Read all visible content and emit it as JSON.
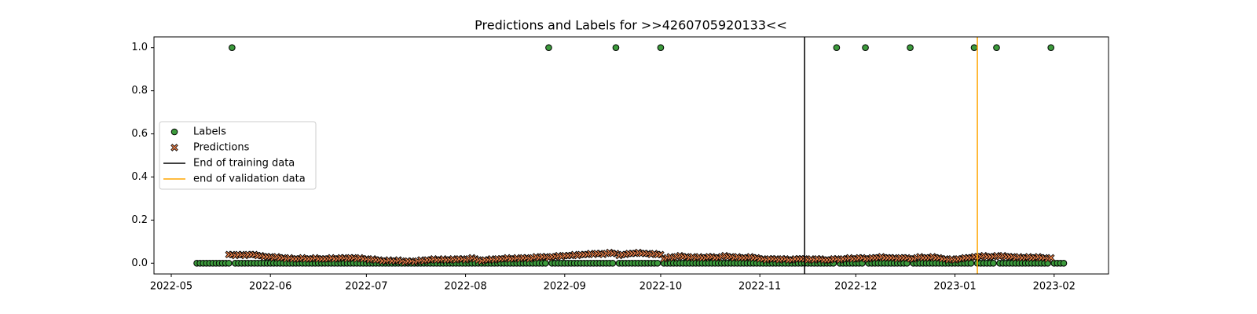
{
  "chart_data": {
    "type": "scatter",
    "title": "Predictions and Labels for >>4260705920133<<",
    "x": [
      19121,
      19122,
      19123,
      19124,
      19125,
      19126,
      19127,
      19128,
      19129,
      19130,
      19131,
      19132,
      19133,
      19134,
      19135,
      19136,
      19137,
      19138,
      19139,
      19140,
      19141,
      19142,
      19143,
      19144,
      19145,
      19146,
      19147,
      19148,
      19149,
      19150,
      19151,
      19152,
      19153,
      19154,
      19155,
      19156,
      19157,
      19158,
      19159,
      19160,
      19161,
      19162,
      19163,
      19164,
      19165,
      19166,
      19167,
      19168,
      19169,
      19170,
      19171,
      19172,
      19173,
      19174,
      19175,
      19176,
      19177,
      19178,
      19179,
      19180,
      19181,
      19182,
      19183,
      19184,
      19185,
      19186,
      19187,
      19188,
      19189,
      19190,
      19191,
      19192,
      19193,
      19194,
      19195,
      19196,
      19197,
      19198,
      19199,
      19200,
      19201,
      19202,
      19203,
      19204,
      19205,
      19206,
      19207,
      19208,
      19209,
      19210,
      19211,
      19212,
      19213,
      19214,
      19215,
      19216,
      19217,
      19218,
      19219,
      19220,
      19221,
      19222,
      19223,
      19224,
      19225,
      19226,
      19227,
      19228,
      19229,
      19230,
      19231,
      19232,
      19233,
      19234,
      19235,
      19236,
      19237,
      19238,
      19239,
      19240,
      19241,
      19242,
      19243,
      19244,
      19245,
      19246,
      19247,
      19248,
      19249,
      19250,
      19251,
      19252,
      19253,
      19254,
      19255,
      19256,
      19257,
      19258,
      19259,
      19260,
      19261,
      19262,
      19263,
      19264,
      19265,
      19266,
      19267,
      19268,
      19269,
      19270,
      19271,
      19272,
      19273,
      19274,
      19275,
      19276,
      19277,
      19278,
      19279,
      19280,
      19281,
      19282,
      19283,
      19284,
      19285,
      19286,
      19287,
      19288,
      19289,
      19290,
      19291,
      19292,
      19293,
      19294,
      19295,
      19296,
      19297,
      19298,
      19299,
      19300,
      19301,
      19302,
      19303,
      19304,
      19305,
      19306,
      19307,
      19308,
      19309,
      19310,
      19311,
      19312,
      19313,
      19314,
      19315,
      19316,
      19317,
      19318,
      19319,
      19320,
      19321,
      19322,
      19323,
      19324,
      19325,
      19326,
      19327,
      19328,
      19329,
      19330,
      19331,
      19332,
      19333,
      19334,
      19335,
      19336,
      19337,
      19338,
      19339,
      19340,
      19341,
      19342,
      19343,
      19344,
      19345,
      19346,
      19347,
      19348,
      19349,
      19350,
      19351,
      19352,
      19353,
      19354,
      19355,
      19356,
      19357,
      19358,
      19359,
      19360,
      19361,
      19362,
      19363,
      19364,
      19365,
      19366,
      19367,
      19368,
      19369,
      19370,
      19371,
      19372,
      19373,
      19374,
      19375,
      19376,
      19377,
      19378,
      19379,
      19380,
      19381,
      19382,
      19383,
      19384,
      19385,
      19386,
      19387,
      19388,
      19389,
      19390,
      19391,
      19392
    ],
    "series": [
      {
        "name": "Labels",
        "color": "#3c9a3c",
        "marker": "circle",
        "values": [
          0,
          0,
          0,
          0,
          0,
          0,
          0,
          0,
          0,
          0,
          0,
          1,
          0,
          0,
          0,
          0,
          0,
          0,
          0,
          0,
          0,
          0,
          0,
          0,
          0,
          0,
          0,
          0,
          0,
          0,
          0,
          0,
          0,
          0,
          0,
          0,
          0,
          0,
          0,
          0,
          0,
          0,
          0,
          0,
          0,
          0,
          0,
          0,
          0,
          0,
          0,
          0,
          0,
          0,
          0,
          0,
          0,
          0,
          0,
          0,
          0,
          0,
          0,
          0,
          0,
          0,
          0,
          0,
          0,
          0,
          0,
          0,
          0,
          0,
          0,
          0,
          0,
          0,
          0,
          0,
          0,
          0,
          0,
          0,
          0,
          0,
          0,
          0,
          0,
          0,
          0,
          0,
          0,
          0,
          0,
          0,
          0,
          0,
          0,
          0,
          0,
          0,
          0,
          0,
          0,
          0,
          0,
          0,
          0,
          0,
          1,
          0,
          0,
          0,
          0,
          0,
          0,
          0,
          0,
          0,
          0,
          0,
          0,
          0,
          0,
          0,
          0,
          0,
          0,
          0,
          0,
          1,
          0,
          0,
          0,
          0,
          0,
          0,
          0,
          0,
          0,
          0,
          0,
          0,
          0,
          1,
          0,
          0,
          0,
          0,
          0,
          0,
          0,
          0,
          0,
          0,
          0,
          0,
          0,
          0,
          0,
          0,
          0,
          0,
          0,
          0,
          0,
          0,
          0,
          0,
          0,
          0,
          0,
          0,
          0,
          0,
          0,
          0,
          0,
          0,
          0,
          0,
          0,
          0,
          0,
          0,
          0,
          0,
          0,
          0,
          0,
          0,
          0,
          0,
          0,
          0,
          0,
          0,
          0,
          0,
          1,
          0,
          0,
          0,
          0,
          0,
          0,
          0,
          0,
          1,
          0,
          0,
          0,
          0,
          0,
          0,
          0,
          0,
          0,
          0,
          0,
          0,
          0,
          1,
          0,
          0,
          0,
          0,
          0,
          0,
          0,
          0,
          0,
          0,
          0,
          0,
          0,
          0,
          0,
          0,
          0,
          0,
          0,
          1,
          0,
          0,
          0,
          0,
          0,
          0,
          1,
          0,
          0,
          0,
          0,
          0,
          0,
          0,
          0,
          0,
          0,
          0,
          0,
          0,
          0,
          0,
          0,
          1,
          0,
          0,
          0,
          0
        ]
      },
      {
        "name": "Predictions",
        "color": "#e8804a",
        "marker": "x",
        "values": [
          null,
          null,
          null,
          null,
          null,
          null,
          null,
          null,
          null,
          null,
          0.04,
          0.04,
          0.035,
          0.04,
          0.04,
          0.035,
          0.04,
          0.04,
          0.04,
          0.035,
          0.035,
          0.03,
          0.03,
          0.03,
          0.025,
          0.03,
          0.025,
          0.025,
          0.02,
          0.025,
          0.02,
          0.02,
          0.02,
          0.025,
          0.02,
          0.02,
          0.02,
          0.025,
          0.02,
          0.02,
          0.02,
          0.02,
          0.025,
          0.02,
          0.02,
          0.025,
          0.025,
          0.02,
          0.025,
          0.025,
          0.02,
          0.025,
          0.02,
          0.02,
          0.015,
          0.02,
          0.015,
          0.015,
          0.01,
          0.01,
          0.015,
          0.01,
          0.01,
          0.015,
          0.01,
          0.005,
          0.01,
          0.01,
          0.005,
          0.01,
          0.015,
          0.01,
          0.015,
          0.015,
          0.02,
          0.015,
          0.015,
          0.02,
          0.015,
          0.015,
          0.02,
          0.015,
          0.02,
          0.02,
          0.015,
          0.02,
          0.025,
          0.02,
          0.015,
          0.01,
          0.015,
          0.015,
          0.02,
          0.015,
          0.02,
          0.02,
          0.02,
          0.025,
          0.02,
          0.02,
          0.025,
          0.02,
          0.025,
          0.025,
          0.02,
          0.025,
          0.03,
          0.025,
          0.03,
          0.03,
          0.025,
          0.03,
          0.03,
          0.035,
          0.03,
          0.035,
          0.035,
          0.035,
          0.04,
          0.035,
          0.04,
          0.04,
          0.04,
          0.045,
          0.04,
          0.045,
          0.045,
          0.04,
          0.045,
          0.05,
          0.045,
          0.045,
          0.035,
          0.04,
          0.04,
          0.045,
          0.045,
          0.045,
          0.05,
          0.045,
          0.045,
          0.045,
          0.04,
          0.045,
          0.04,
          0.04,
          0.02,
          0.025,
          0.03,
          0.025,
          0.03,
          0.035,
          0.03,
          0.03,
          0.025,
          0.03,
          0.025,
          0.03,
          0.025,
          0.025,
          0.03,
          0.03,
          0.025,
          0.025,
          0.03,
          0.035,
          0.03,
          0.03,
          0.025,
          0.03,
          0.025,
          0.025,
          0.025,
          0.03,
          0.025,
          0.025,
          0.02,
          0.02,
          0.015,
          0.02,
          0.02,
          0.02,
          0.015,
          0.02,
          0.02,
          0.015,
          0.015,
          0.02,
          0.02,
          0.02,
          0.02,
          0.015,
          0.02,
          0.015,
          0.02,
          0.02,
          0.015,
          0.015,
          0.015,
          0.02,
          0.02,
          0.015,
          0.02,
          0.02,
          0.025,
          0.02,
          0.02,
          0.025,
          0.025,
          0.02,
          0.02,
          0.025,
          0.025,
          0.025,
          0.03,
          0.025,
          0.025,
          0.025,
          0.025,
          0.02,
          0.025,
          0.025,
          0.025,
          0.02,
          0.02,
          0.025,
          0.03,
          0.025,
          0.025,
          0.025,
          0.03,
          0.025,
          0.025,
          0.02,
          0.02,
          0.015,
          0.02,
          0.015,
          0.02,
          0.02,
          0.025,
          0.025,
          0.025,
          0.03,
          0.03,
          0.03,
          0.035,
          0.03,
          0.03,
          0.03,
          0.035,
          0.03,
          0.035,
          0.03,
          0.03,
          0.03,
          0.025,
          0.03,
          0.025,
          0.025,
          0.03,
          0.025,
          0.025,
          0.03,
          0.025,
          0.025,
          0.02,
          0.025,
          null,
          null,
          null,
          null
        ]
      }
    ],
    "vlines": [
      {
        "name": "End of training data",
        "x": 19311,
        "color": "#000000"
      },
      {
        "name": "end of validation data",
        "x": 19365,
        "color": "#ffa500"
      }
    ],
    "xlim": [
      19107.6,
      19406
    ],
    "xticks": [
      {
        "value": 19113,
        "label": "2022-05"
      },
      {
        "value": 19144,
        "label": "2022-06"
      },
      {
        "value": 19174,
        "label": "2022-07"
      },
      {
        "value": 19205,
        "label": "2022-08"
      },
      {
        "value": 19236,
        "label": "2022-09"
      },
      {
        "value": 19266,
        "label": "2022-10"
      },
      {
        "value": 19297,
        "label": "2022-11"
      },
      {
        "value": 19327,
        "label": "2022-12"
      },
      {
        "value": 19358,
        "label": "2023-01"
      },
      {
        "value": 19389,
        "label": "2023-02"
      }
    ],
    "ylim": [
      -0.05,
      1.05
    ],
    "yticks": [
      {
        "value": 0,
        "label": "0.0"
      },
      0.2,
      0.4,
      0.6,
      0.8,
      {
        "value": 1,
        "label": "1.0"
      }
    ],
    "grid": false,
    "legend": "center left"
  }
}
